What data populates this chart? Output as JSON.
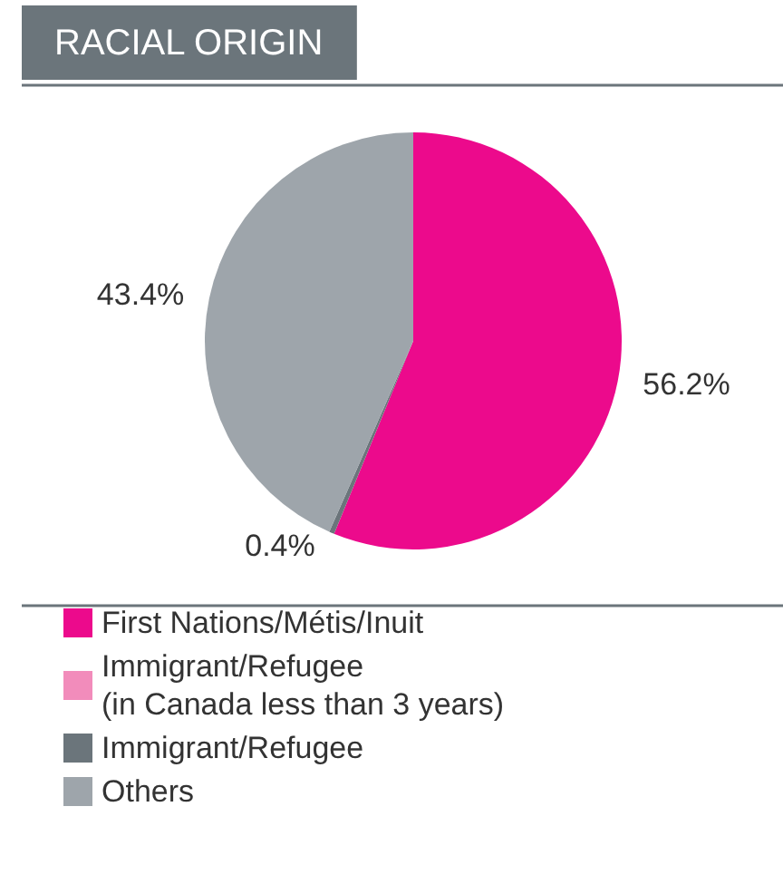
{
  "chart_data": {
    "type": "pie",
    "title": "RACIAL ORIGIN",
    "categories": [
      "First Nations/Métis/Inuit",
      "Immigrant/Refugee (in Canada less than 3 years)",
      "Immigrant/Refugee",
      "Others"
    ],
    "values": [
      56.2,
      0,
      0.4,
      43.4
    ],
    "value_labels": [
      "56.2%",
      null,
      "0.4%",
      "43.4%"
    ],
    "colors": [
      "#ec0a8c",
      "#f28cbb",
      "#6b757b",
      "#9ea5ab"
    ],
    "legend": "bottom"
  }
}
